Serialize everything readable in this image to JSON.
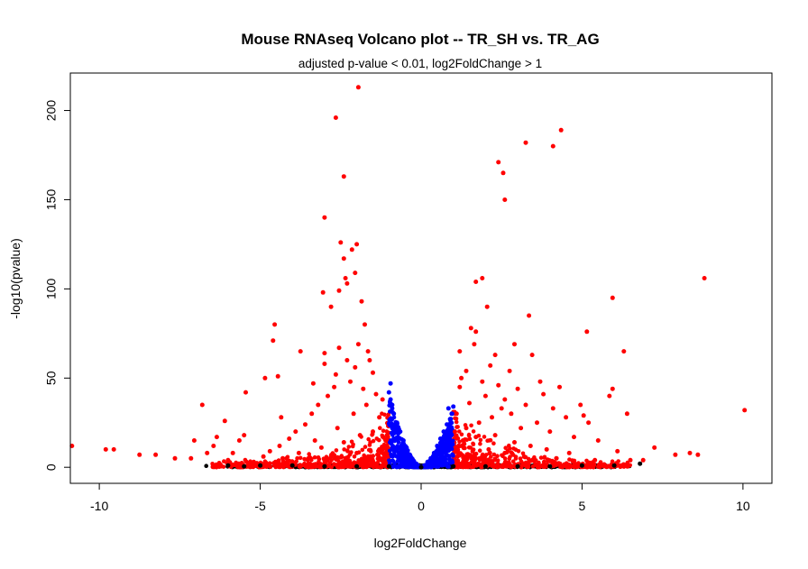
{
  "chart_data": {
    "type": "scatter",
    "title": "Mouse RNAseq Volcano plot -- TR_SH vs. TR_AG",
    "subtitle": "adjusted p-value < 0.01, log2FoldChange > 1",
    "xlabel": "log2FoldChange",
    "ylabel": "-log10(pvalue)",
    "xlim": [
      -10.9,
      10.9
    ],
    "ylim": [
      -9,
      221
    ],
    "x_ticks": [
      -10,
      -5,
      0,
      5,
      10
    ],
    "y_ticks": [
      0,
      50,
      100,
      150,
      200
    ],
    "grid": false,
    "legend": "none",
    "colors": {
      "significant": "#ff0000",
      "significant_small_fc": "#0000ff",
      "not_significant": "#000000"
    },
    "series": [
      {
        "color": "#ff0000",
        "points": [
          [
            -1.95,
            213
          ],
          [
            -2.65,
            196
          ],
          [
            -2.4,
            163
          ],
          [
            -3.0,
            140
          ],
          [
            -2.5,
            126
          ],
          [
            -2.0,
            125
          ],
          [
            -2.15,
            122
          ],
          [
            -2.4,
            117
          ],
          [
            -2.05,
            109
          ],
          [
            -2.35,
            106
          ],
          [
            -2.55,
            99
          ],
          [
            -2.3,
            103
          ],
          [
            -1.85,
            93
          ],
          [
            -3.05,
            98
          ],
          [
            -2.8,
            90
          ],
          [
            -4.55,
            80
          ],
          [
            -4.6,
            71
          ],
          [
            -3.75,
            65
          ],
          [
            -3.0,
            64
          ],
          [
            -2.55,
            67
          ],
          [
            -1.95,
            69
          ],
          [
            -1.65,
            65
          ],
          [
            -1.75,
            80
          ],
          [
            -4.85,
            50
          ],
          [
            -4.45,
            51
          ],
          [
            -3.35,
            47
          ],
          [
            -2.65,
            52
          ],
          [
            -2.05,
            56
          ],
          [
            -1.5,
            53
          ],
          [
            -4.35,
            28
          ],
          [
            -5.45,
            42
          ],
          [
            -6.8,
            35
          ],
          [
            -6.1,
            26
          ],
          [
            -5.5,
            18
          ],
          [
            -6.35,
            17
          ],
          [
            -5.65,
            15
          ],
          [
            -5.85,
            8
          ],
          [
            -6.45,
            12
          ],
          [
            -6.65,
            8
          ],
          [
            -7.05,
            15
          ],
          [
            -7.15,
            5
          ],
          [
            -7.65,
            5
          ],
          [
            -8.25,
            7
          ],
          [
            -8.75,
            7
          ],
          [
            -9.55,
            10
          ],
          [
            -9.8,
            10
          ],
          [
            -10.85,
            12
          ],
          [
            -6.0,
            4
          ],
          [
            -5.2,
            3
          ],
          [
            -4.9,
            6
          ],
          [
            -4.7,
            9
          ],
          [
            -4.4,
            12
          ],
          [
            -4.1,
            16
          ],
          [
            -3.9,
            20
          ],
          [
            -3.6,
            24
          ],
          [
            -3.4,
            30
          ],
          [
            -3.2,
            35
          ],
          [
            -2.9,
            40
          ],
          [
            -2.7,
            45
          ],
          [
            -2.2,
            48
          ],
          [
            -1.8,
            44
          ],
          [
            -1.4,
            41
          ],
          [
            -1.2,
            38
          ],
          [
            -3.0,
            58
          ],
          [
            -2.3,
            60
          ],
          [
            -1.6,
            60
          ],
          [
            -3.3,
            15
          ],
          [
            -2.6,
            22
          ],
          [
            -2.1,
            30
          ],
          [
            -1.7,
            35
          ],
          [
            -1.3,
            28
          ],
          [
            -3.8,
            8
          ],
          [
            -3.1,
            11
          ],
          [
            -2.4,
            14
          ],
          [
            -1.9,
            18
          ],
          [
            -1.5,
            20
          ],
          [
            -1.1,
            15
          ],
          [
            -4.3,
            5
          ],
          [
            -3.5,
            5
          ],
          [
            -2.8,
            6
          ],
          [
            -2.0,
            8
          ],
          [
            -1.3,
            10
          ],
          [
            -1.05,
            6
          ],
          [
            3.25,
            182
          ],
          [
            4.35,
            189
          ],
          [
            4.1,
            180
          ],
          [
            2.4,
            171
          ],
          [
            2.55,
            165
          ],
          [
            2.6,
            150
          ],
          [
            1.9,
            106
          ],
          [
            1.7,
            104
          ],
          [
            3.35,
            85
          ],
          [
            2.05,
            90
          ],
          [
            1.55,
            78
          ],
          [
            1.7,
            76
          ],
          [
            5.15,
            76
          ],
          [
            5.95,
            95
          ],
          [
            6.3,
            65
          ],
          [
            2.9,
            69
          ],
          [
            3.45,
            63
          ],
          [
            2.3,
            63
          ],
          [
            1.65,
            69
          ],
          [
            1.2,
            65
          ],
          [
            2.15,
            57
          ],
          [
            2.75,
            54
          ],
          [
            3.7,
            48
          ],
          [
            4.3,
            45
          ],
          [
            3.8,
            41
          ],
          [
            4.95,
            35
          ],
          [
            5.85,
            40
          ],
          [
            5.95,
            44
          ],
          [
            6.4,
            30
          ],
          [
            5.05,
            29
          ],
          [
            5.2,
            25
          ],
          [
            4.5,
            28
          ],
          [
            4.1,
            33
          ],
          [
            3.25,
            35
          ],
          [
            2.6,
            38
          ],
          [
            2.0,
            40
          ],
          [
            1.5,
            36
          ],
          [
            1.2,
            45
          ],
          [
            1.1,
            30
          ],
          [
            4.75,
            17
          ],
          [
            5.5,
            15
          ],
          [
            6.1,
            9
          ],
          [
            7.25,
            11
          ],
          [
            7.9,
            7
          ],
          [
            8.35,
            8
          ],
          [
            8.6,
            7
          ],
          [
            8.8,
            106
          ],
          [
            10.05,
            32
          ],
          [
            6.9,
            4
          ],
          [
            1.4,
            22
          ],
          [
            1.8,
            25
          ],
          [
            2.2,
            28
          ],
          [
            2.8,
            30
          ],
          [
            3.1,
            22
          ],
          [
            3.6,
            25
          ],
          [
            4.0,
            20
          ],
          [
            1.3,
            15
          ],
          [
            1.7,
            17
          ],
          [
            2.3,
            18
          ],
          [
            2.9,
            14
          ],
          [
            3.4,
            12
          ],
          [
            3.9,
            10
          ],
          [
            4.6,
            8
          ],
          [
            1.15,
            8
          ],
          [
            1.6,
            9
          ],
          [
            2.1,
            10
          ],
          [
            2.6,
            8
          ],
          [
            3.2,
            6
          ],
          [
            4.2,
            5
          ],
          [
            5.4,
            4
          ],
          [
            6.5,
            4
          ],
          [
            1.9,
            48
          ],
          [
            2.4,
            46
          ],
          [
            1.4,
            54
          ],
          [
            3.0,
            44
          ],
          [
            2.5,
            33
          ],
          [
            1.05,
            20
          ],
          [
            1.25,
            50
          ]
        ]
      },
      {
        "color": "#0000ff",
        "points": [
          [
            -1.0,
            42
          ],
          [
            -0.95,
            38
          ],
          [
            -0.9,
            33
          ],
          [
            -0.85,
            30
          ],
          [
            -0.75,
            25
          ],
          [
            -0.65,
            20
          ],
          [
            -0.55,
            15
          ],
          [
            -0.45,
            11
          ],
          [
            -0.35,
            7
          ],
          [
            -0.25,
            4
          ],
          [
            -0.15,
            2
          ],
          [
            -0.95,
            47
          ],
          [
            -0.9,
            35
          ],
          [
            1.0,
            34
          ],
          [
            0.95,
            30
          ],
          [
            0.9,
            27
          ],
          [
            0.8,
            24
          ],
          [
            0.7,
            20
          ],
          [
            0.6,
            16
          ],
          [
            0.5,
            12
          ],
          [
            0.4,
            8
          ],
          [
            0.3,
            5
          ],
          [
            0.2,
            3
          ],
          [
            0.1,
            1
          ],
          [
            0.85,
            33
          ],
          [
            0.95,
            22
          ]
        ]
      },
      {
        "color": "#000000",
        "points": [
          [
            -5.0,
            1
          ],
          [
            -4.0,
            1
          ],
          [
            -3.0,
            0.5
          ],
          [
            -2.0,
            0.5
          ],
          [
            -1.0,
            0.5
          ],
          [
            0.0,
            0
          ],
          [
            1.0,
            0.5
          ],
          [
            2.0,
            0.5
          ],
          [
            3.0,
            0.5
          ],
          [
            4.0,
            0.5
          ],
          [
            5.0,
            1
          ],
          [
            6.0,
            1
          ],
          [
            -6.0,
            1
          ],
          [
            6.8,
            2
          ],
          [
            -5.5,
            0.5
          ]
        ]
      }
    ]
  }
}
